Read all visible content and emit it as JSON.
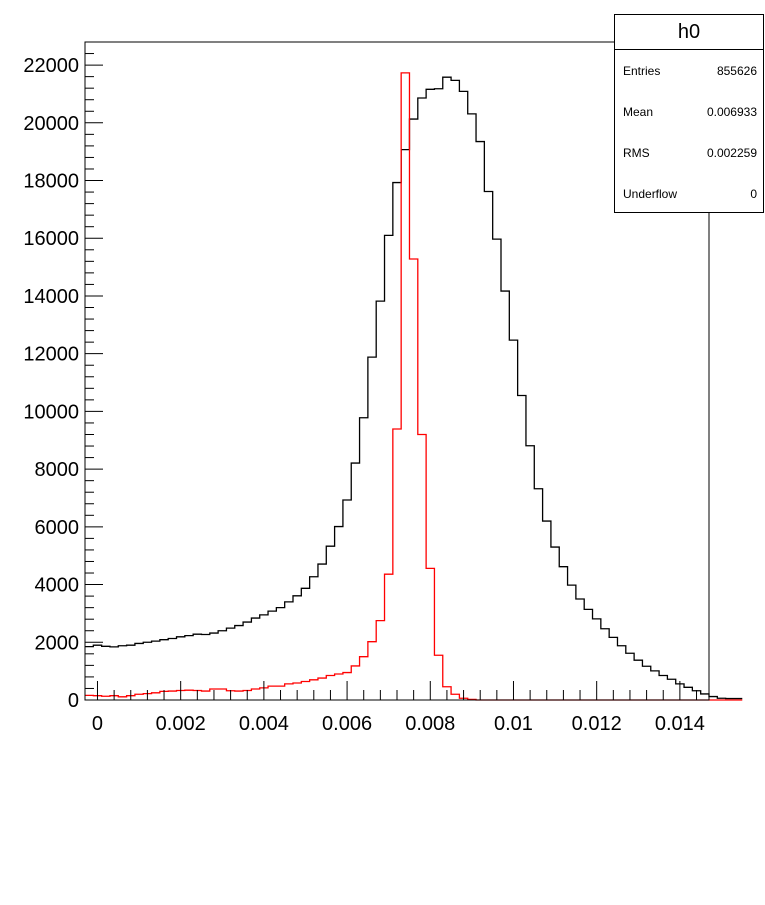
{
  "chart_data": {
    "type": "histogram",
    "title": "",
    "xlabel": "",
    "ylabel": "",
    "xlim": [
      -0.0003,
      0.0147
    ],
    "ylim": [
      0,
      22800
    ],
    "bin_width": 0.0002,
    "x_ticks": [
      {
        "value": 0,
        "label": "0"
      },
      {
        "value": 0.002,
        "label": "0.002"
      },
      {
        "value": 0.004,
        "label": "0.004"
      },
      {
        "value": 0.006,
        "label": "0.006"
      },
      {
        "value": 0.008,
        "label": "0.008"
      },
      {
        "value": 0.01,
        "label": "0.01"
      },
      {
        "value": 0.012,
        "label": "0.012"
      },
      {
        "value": 0.014,
        "label": "0.014"
      }
    ],
    "y_ticks": [
      {
        "value": 0,
        "label": "0"
      },
      {
        "value": 2000,
        "label": "2000"
      },
      {
        "value": 4000,
        "label": "4000"
      },
      {
        "value": 6000,
        "label": "6000"
      },
      {
        "value": 8000,
        "label": "8000"
      },
      {
        "value": 10000,
        "label": "10000"
      },
      {
        "value": 12000,
        "label": "12000"
      },
      {
        "value": 14000,
        "label": "14000"
      },
      {
        "value": 16000,
        "label": "16000"
      },
      {
        "value": 18000,
        "label": "18000"
      },
      {
        "value": 20000,
        "label": "20000"
      },
      {
        "value": 22000,
        "label": "22000"
      }
    ],
    "series": [
      {
        "color": "#000000",
        "values": [
          1850,
          1900,
          1860,
          1840,
          1880,
          1900,
          1960,
          2000,
          2040,
          2090,
          2130,
          2190,
          2230,
          2280,
          2270,
          2320,
          2400,
          2490,
          2580,
          2700,
          2840,
          2950,
          3080,
          3200,
          3400,
          3610,
          3870,
          4270,
          4710,
          5330,
          6010,
          6930,
          8210,
          9780,
          11880,
          13820,
          16100,
          17930,
          19070,
          20130,
          20860,
          21160,
          21180,
          21580,
          21470,
          21090,
          20310,
          19350,
          17620,
          15970,
          14170,
          12470,
          10550,
          8810,
          7320,
          6200,
          5300,
          4620,
          3980,
          3500,
          3140,
          2810,
          2470,
          2170,
          1880,
          1620,
          1380,
          1170,
          1010,
          850,
          720,
          560,
          440,
          320,
          210,
          120,
          60,
          50,
          50
        ],
        "x_start": -0.0003
      },
      {
        "color": "#ff0000",
        "values": [
          160,
          150,
          130,
          150,
          110,
          150,
          200,
          220,
          250,
          300,
          310,
          330,
          340,
          330,
          310,
          380,
          380,
          320,
          310,
          330,
          380,
          420,
          480,
          480,
          560,
          590,
          640,
          700,
          760,
          850,
          900,
          950,
          1180,
          1500,
          2020,
          2750,
          4360,
          9390,
          21730,
          15280,
          9200,
          4560,
          1550,
          460,
          200,
          60,
          20,
          0,
          0,
          0,
          0,
          0,
          0,
          0,
          0,
          0,
          0,
          0,
          0,
          0,
          0,
          0,
          0,
          0,
          0,
          0,
          0,
          0,
          0,
          0,
          0,
          0,
          0,
          0,
          0,
          0,
          0,
          0,
          0
        ],
        "x_start": -0.0003
      }
    ]
  },
  "stats": {
    "title": "h0",
    "rows": [
      {
        "label": "Entries",
        "value": "855626"
      },
      {
        "label": "Mean",
        "value": "0.006933"
      },
      {
        "label": "RMS",
        "value": "0.002259"
      },
      {
        "label": "Underflow",
        "value": "0"
      }
    ]
  }
}
